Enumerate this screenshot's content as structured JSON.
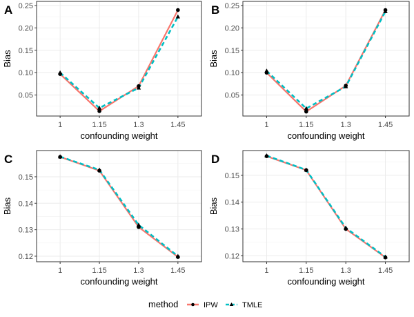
{
  "chart_data": [
    {
      "type": "line",
      "tag": "A",
      "xlabel": "confounding weight",
      "ylabel": "Bias",
      "categories": [
        "1",
        "1.15",
        "1.3",
        "1.45"
      ],
      "yticks": [
        "0.05",
        "0.10",
        "0.15",
        "0.20",
        "0.25"
      ],
      "ytick_values": [
        0.05,
        0.1,
        0.15,
        0.2,
        0.25
      ],
      "ylim": [
        0.0031,
        0.2594
      ],
      "grid": true,
      "series": [
        {
          "name": "IPW",
          "values": [
            0.097,
            0.014,
            0.07,
            0.24
          ]
        },
        {
          "name": "TMLE",
          "values": [
            0.1,
            0.021,
            0.066,
            0.225
          ]
        }
      ]
    },
    {
      "type": "line",
      "tag": "B",
      "xlabel": "confounding weight",
      "ylabel": "Bias",
      "categories": [
        "1",
        "1.15",
        "1.3",
        "1.45"
      ],
      "yticks": [
        "0.05",
        "0.10",
        "0.15",
        "0.20",
        "0.25"
      ],
      "ytick_values": [
        0.05,
        0.1,
        0.15,
        0.2,
        0.25
      ],
      "ylim": [
        0.0031,
        0.2594
      ],
      "grid": true,
      "series": [
        {
          "name": "IPW",
          "values": [
            0.1,
            0.013,
            0.071,
            0.24
          ]
        },
        {
          "name": "TMLE",
          "values": [
            0.104,
            0.02,
            0.069,
            0.237
          ]
        }
      ]
    },
    {
      "type": "line",
      "tag": "C",
      "xlabel": "confounding weight",
      "ylabel": "Bias",
      "categories": [
        "1",
        "1.15",
        "1.3",
        "1.45"
      ],
      "yticks": [
        "0.12",
        "0.13",
        "0.14",
        "0.15"
      ],
      "ytick_values": [
        0.12,
        0.13,
        0.14,
        0.15
      ],
      "ylim": [
        0.1179,
        0.1599
      ],
      "grid": true,
      "series": [
        {
          "name": "IPW",
          "values": [
            0.1575,
            0.1523,
            0.131,
            0.1197
          ]
        },
        {
          "name": "TMLE",
          "values": [
            0.1576,
            0.1526,
            0.1318,
            0.12
          ]
        }
      ]
    },
    {
      "type": "line",
      "tag": "D",
      "xlabel": "confounding weight",
      "ylabel": "Bias",
      "categories": [
        "1",
        "1.15",
        "1.3",
        "1.45"
      ],
      "yticks": [
        "0.12",
        "0.13",
        "0.14",
        "0.15"
      ],
      "ytick_values": [
        0.12,
        0.13,
        0.14,
        0.15
      ],
      "ylim": [
        0.1178,
        0.1592
      ],
      "grid": true,
      "series": [
        {
          "name": "IPW",
          "values": [
            0.1571,
            0.1519,
            0.13,
            0.1194
          ]
        },
        {
          "name": "TMLE",
          "values": [
            0.1573,
            0.152,
            0.1304,
            0.1196
          ]
        }
      ]
    }
  ],
  "legend": {
    "title": "method",
    "placement": "bottom",
    "items": [
      {
        "label": "IPW",
        "color": "#F8766D",
        "marker": "circle",
        "linestyle": "solid"
      },
      {
        "label": "TMLE",
        "color": "#00BFC4",
        "marker": "triangle",
        "linestyle": "dashed"
      }
    ]
  },
  "colors": {
    "ipw": "#F8766D",
    "tmle": "#00BFC4",
    "marker": "#000000",
    "grid": "#ebebeb",
    "panel_border": "#333333"
  }
}
